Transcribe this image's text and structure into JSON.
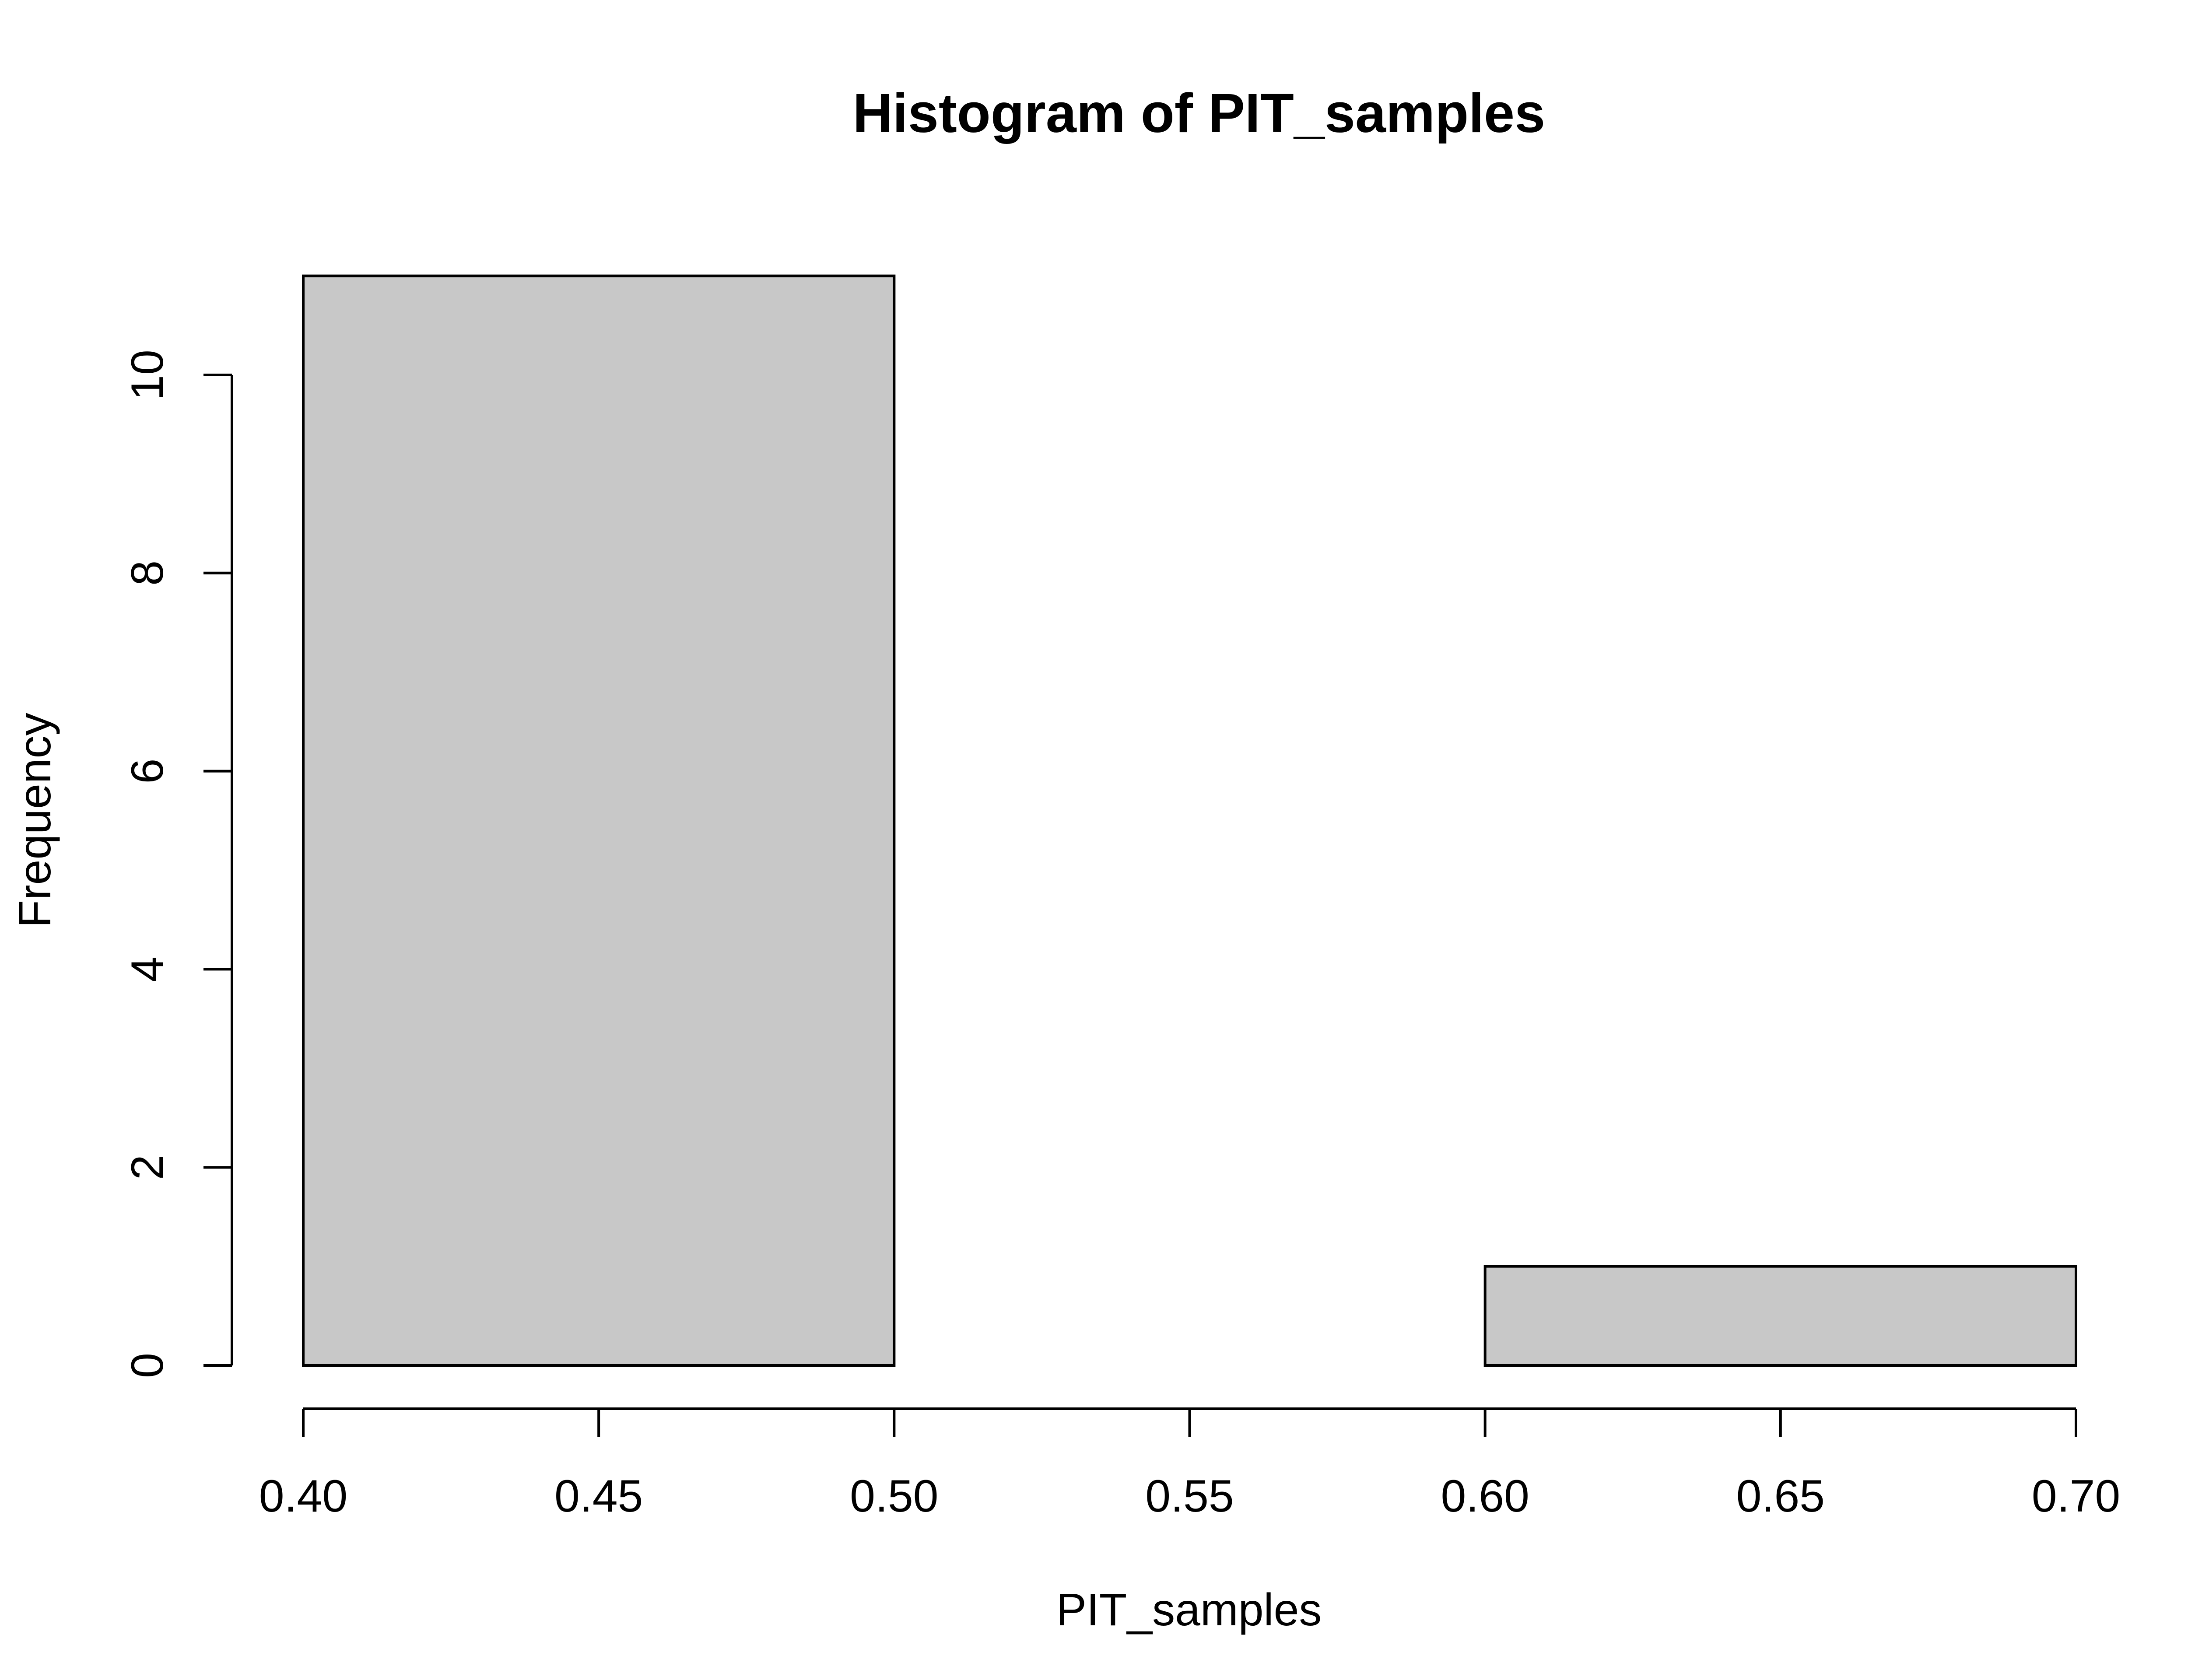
{
  "chart_data": {
    "type": "bar",
    "title": "Histogram of PIT_samples",
    "xlabel": "PIT_samples",
    "ylabel": "Frequency",
    "bins": [
      {
        "start": 0.4,
        "end": 0.5,
        "count": 11
      },
      {
        "start": 0.5,
        "end": 0.6,
        "count": 0
      },
      {
        "start": 0.6,
        "end": 0.7,
        "count": 1
      }
    ],
    "xlim": [
      0.4,
      0.7
    ],
    "ylim": [
      0,
      11
    ],
    "x_ticks": [
      "0.40",
      "0.45",
      "0.50",
      "0.55",
      "0.60",
      "0.65",
      "0.70"
    ],
    "y_ticks": [
      "0",
      "2",
      "4",
      "6",
      "8",
      "10"
    ],
    "grid": false,
    "colors": {
      "bar_fill": "#c8c8c8",
      "bar_stroke": "#000000",
      "axis": "#000000"
    }
  }
}
